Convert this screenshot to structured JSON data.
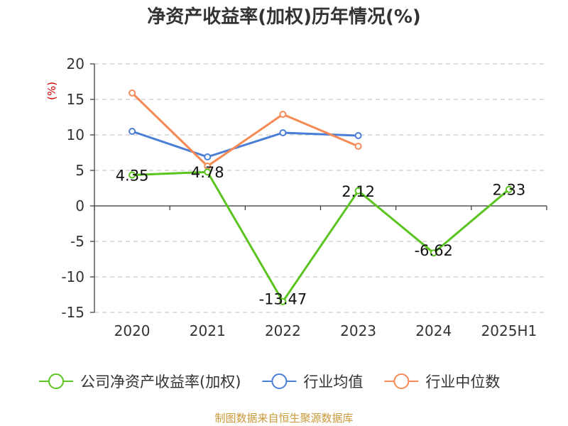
{
  "chart_data": {
    "type": "line",
    "title": "净资产收益率(加权)历年情况(%)",
    "ylabel": "(%)",
    "categories": [
      "2020",
      "2021",
      "2022",
      "2023",
      "2024",
      "2025H1"
    ],
    "ylim": [
      -15,
      20
    ],
    "yticks": [
      -15,
      -10,
      -5,
      0,
      5,
      10,
      15,
      20
    ],
    "grid": true,
    "legend_position": "bottom",
    "series": [
      {
        "name": "公司净资产收益率(加权)",
        "color": "#5cc420",
        "values": [
          4.35,
          4.78,
          -13.47,
          2.12,
          -6.62,
          2.33
        ],
        "labels": [
          "4.35",
          "4.78",
          "-13.47",
          "2.12",
          "-6.62",
          "2.33"
        ]
      },
      {
        "name": "行业均值",
        "color": "#4b7fd6",
        "values": [
          10.5,
          6.9,
          10.3,
          9.9,
          null,
          null
        ]
      },
      {
        "name": "行业中位数",
        "color": "#f58a55",
        "values": [
          15.9,
          5.6,
          12.9,
          8.4,
          null,
          null
        ]
      }
    ],
    "source": "制图数据来自恒生聚源数据库"
  }
}
